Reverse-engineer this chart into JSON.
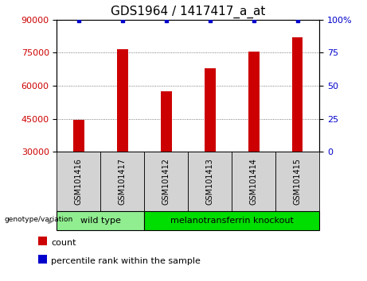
{
  "title": "GDS1964 / 1417417_a_at",
  "samples": [
    "GSM101416",
    "GSM101417",
    "GSM101412",
    "GSM101413",
    "GSM101414",
    "GSM101415"
  ],
  "counts": [
    44500,
    76500,
    57500,
    68000,
    75500,
    82000
  ],
  "percentile_ranks": [
    99,
    99,
    99,
    99,
    99,
    99
  ],
  "ylim_left": [
    30000,
    90000
  ],
  "ylim_right": [
    0,
    100
  ],
  "yticks_left": [
    30000,
    45000,
    60000,
    75000,
    90000
  ],
  "yticks_right": [
    0,
    25,
    50,
    75,
    100
  ],
  "ytick_labels_left": [
    "30000",
    "45000",
    "60000",
    "75000",
    "90000"
  ],
  "ytick_labels_right": [
    "0",
    "25",
    "50",
    "75",
    "100%"
  ],
  "bar_color": "#cc0000",
  "dot_color": "#0000cc",
  "bar_width": 0.25,
  "groups": [
    {
      "label": "wild type",
      "indices": [
        0,
        1
      ],
      "color": "#90ee90"
    },
    {
      "label": "melanotransferrin knockout",
      "indices": [
        2,
        3,
        4,
        5
      ],
      "color": "#00dd00"
    }
  ],
  "group_label_prefix": "genotype/variation",
  "legend_count_label": "count",
  "legend_pct_label": "percentile rank within the sample",
  "left_yaxis_color": "#cc0000",
  "right_yaxis_color": "#0000cc",
  "grid_style": "dotted",
  "grid_color": "#555555",
  "xlabel_area_bg": "#d3d3d3",
  "title_fontsize": 11,
  "tick_fontsize": 8,
  "sample_fontsize": 7,
  "group_fontsize": 8,
  "legend_fontsize": 8
}
